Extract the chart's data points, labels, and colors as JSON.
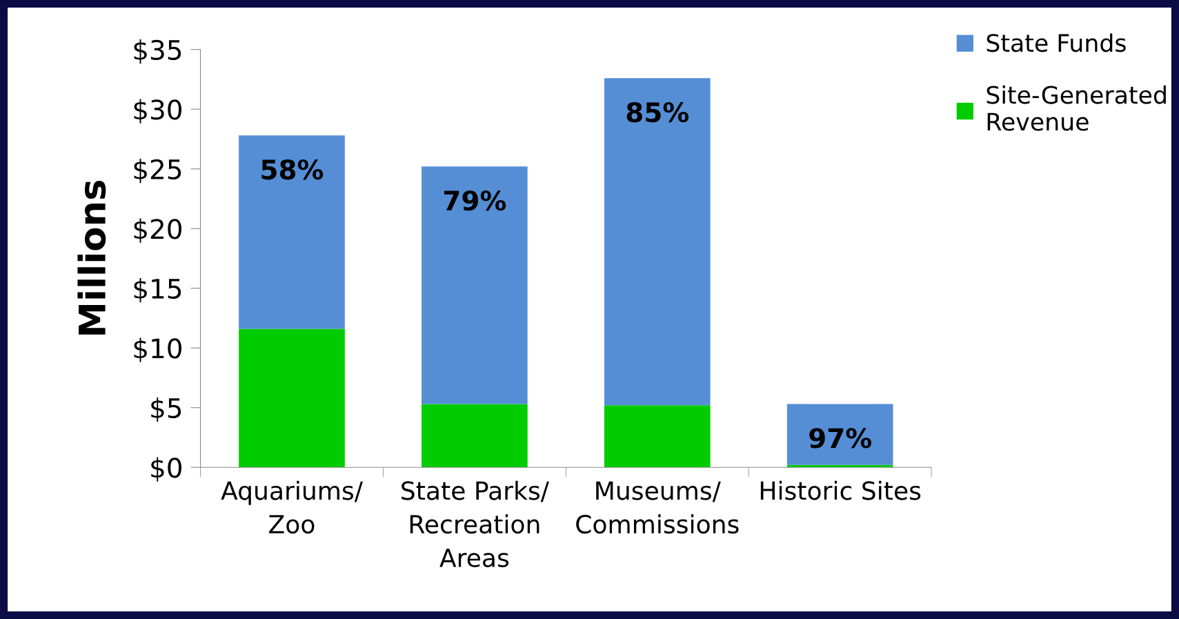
{
  "chart_data": {
    "type": "bar",
    "stacked": true,
    "ylabel": "Millions",
    "categories": [
      "Aquariums/\nZoo",
      "State Parks/\nRecreation\nAreas",
      "Museums/\nCommissions",
      "Historic Sites"
    ],
    "series": [
      {
        "name": "Site-Generated\nRevenue",
        "color": "#00cc00",
        "values": [
          11.6,
          5.3,
          5.2,
          0.2
        ]
      },
      {
        "name": "State Funds",
        "color": "#558ed5",
        "values": [
          16.2,
          19.9,
          27.4,
          5.1
        ]
      }
    ],
    "ylim": [
      0,
      35
    ],
    "yticks": [
      {
        "value": 0,
        "label": "$0"
      },
      {
        "value": 5,
        "label": "$5"
      },
      {
        "value": 10,
        "label": "$10"
      },
      {
        "value": 15,
        "label": "$15"
      },
      {
        "value": 20,
        "label": "$20"
      },
      {
        "value": 25,
        "label": "$25"
      },
      {
        "value": 30,
        "label": "$30"
      },
      {
        "value": 35,
        "label": "$35"
      }
    ],
    "annotations": [
      "58%",
      "79%",
      "85%",
      "97%"
    ],
    "grid": false,
    "legend": "top right"
  }
}
